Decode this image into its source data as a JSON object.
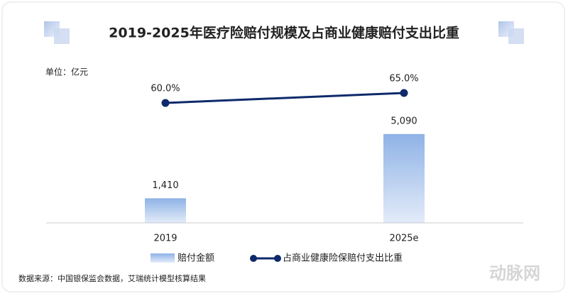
{
  "chart_data": {
    "type": "bar",
    "title": "2019-2025年医疗险赔付规模及占商业健康赔付支出比重",
    "unit_label": "单位：亿元",
    "categories": [
      "2019",
      "2025e"
    ],
    "series": [
      {
        "name": "赔付金额",
        "type": "bar",
        "color": "#8fb2e6",
        "values": [
          1410,
          5090
        ],
        "value_labels": [
          "1,410",
          "5,090"
        ]
      },
      {
        "name": "占商业健康险保赔付支出比重",
        "type": "line",
        "axis": "y2",
        "color": "#0f2a6b",
        "values": [
          60.0,
          65.0
        ],
        "value_labels": [
          "60.0%",
          "65.0%"
        ]
      }
    ],
    "ylim": [
      0,
      8700
    ],
    "y2lim": [
      0,
      76
    ],
    "source": "数据来源：中国银保监会数据，艾瑞统计模型核算结果",
    "watermark": "动脉网"
  }
}
